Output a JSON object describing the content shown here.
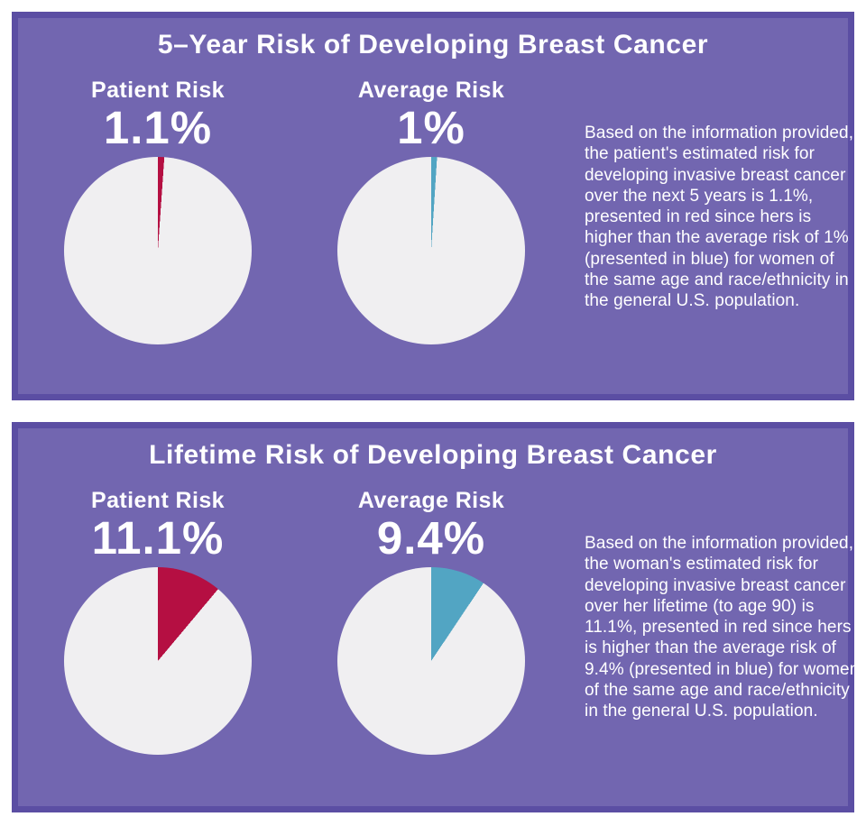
{
  "colors": {
    "page_background": "#ffffff",
    "panel_background": "#7266B0",
    "panel_border": "#5B4EA3",
    "pie_remainder": "#F0EFF1",
    "patient_red": "#B50F42",
    "average_blue": "#52A5C3",
    "text": "#ffffff"
  },
  "panels": [
    {
      "title": "5–Year Risk of Developing Breast Cancer",
      "charts": [
        {
          "label": "Patient Risk",
          "value_label": "1.1%",
          "value_pct": 1.1,
          "color_key": "patient_red"
        },
        {
          "label": "Average Risk",
          "value_label": "1%",
          "value_pct": 1.0,
          "color_key": "average_blue"
        }
      ],
      "description": "Based on the information provided, the patient's estimated risk for developing invasive breast cancer over the next 5 years is 1.1%, presented in red since hers is higher than the average risk of 1% (presented in blue) for women of the same age and race/ethnicity in the general U.S. population."
    },
    {
      "title": "Lifetime Risk of Developing Breast Cancer",
      "charts": [
        {
          "label": "Patient Risk",
          "value_label": "11.1%",
          "value_pct": 11.1,
          "color_key": "patient_red"
        },
        {
          "label": "Average Risk",
          "value_label": "9.4%",
          "value_pct": 9.4,
          "color_key": "average_blue"
        }
      ],
      "description": "Based on the information provided, the woman's estimated risk for developing invasive breast cancer over her lifetime (to age 90) is 11.1%, presented in red since hers is higher than the average risk of 9.4% (presented in blue) for women of the same age and race/ethnicity in the general U.S. population."
    }
  ],
  "chart_data": [
    {
      "type": "pie",
      "title": "5–Year Risk of Developing Breast Cancer — Patient Risk",
      "data_label": "1.1%",
      "start_angle": "12 o'clock",
      "direction": "clockwise",
      "slices": [
        {
          "label": "Patient Risk",
          "value_pct": 1.1,
          "color": "#B50F42"
        },
        {
          "label": "Remainder",
          "value_pct": 98.9,
          "color": "#F0EFF1"
        }
      ]
    },
    {
      "type": "pie",
      "title": "5–Year Risk of Developing Breast Cancer — Average Risk",
      "data_label": "1%",
      "start_angle": "12 o'clock",
      "direction": "clockwise",
      "slices": [
        {
          "label": "Average Risk",
          "value_pct": 1.0,
          "color": "#52A5C3"
        },
        {
          "label": "Remainder",
          "value_pct": 99.0,
          "color": "#F0EFF1"
        }
      ]
    },
    {
      "type": "pie",
      "title": "Lifetime Risk of Developing Breast Cancer — Patient Risk",
      "data_label": "11.1%",
      "start_angle": "12 o'clock",
      "direction": "clockwise",
      "slices": [
        {
          "label": "Patient Risk",
          "value_pct": 11.1,
          "color": "#B50F42"
        },
        {
          "label": "Remainder",
          "value_pct": 88.9,
          "color": "#F0EFF1"
        }
      ]
    },
    {
      "type": "pie",
      "title": "Lifetime Risk of Developing Breast Cancer — Average Risk",
      "data_label": "9.4%",
      "start_angle": "12 o'clock",
      "direction": "clockwise",
      "slices": [
        {
          "label": "Average Risk",
          "value_pct": 9.4,
          "color": "#52A5C3"
        },
        {
          "label": "Remainder",
          "value_pct": 90.6,
          "color": "#F0EFF1"
        }
      ]
    }
  ]
}
